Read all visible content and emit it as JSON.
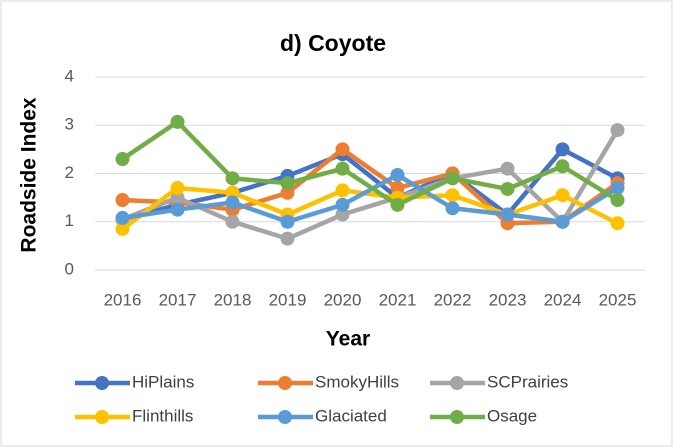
{
  "chart_data": {
    "type": "line",
    "title": "d) Coyote",
    "x_label": "Year",
    "y_label": "Roadside Index",
    "categories": [
      "2016",
      "2017",
      "2018",
      "2019",
      "2020",
      "2021",
      "2022",
      "2023",
      "2024",
      "2025"
    ],
    "series": [
      {
        "name": "HiPlains",
        "color": "#4472c4",
        "values": [
          1.05,
          1.35,
          1.6,
          1.95,
          2.4,
          1.5,
          2.0,
          1.15,
          2.5,
          1.9
        ]
      },
      {
        "name": "SmokyHills",
        "color": "#ed7d31",
        "values": [
          1.45,
          1.4,
          1.25,
          1.6,
          2.5,
          1.7,
          2.0,
          0.97,
          1.0,
          1.8
        ]
      },
      {
        "name": "SCPrairies",
        "color": "#a5a5a5",
        "values": [
          1.05,
          1.5,
          1.0,
          0.65,
          1.15,
          1.5,
          1.9,
          2.1,
          1.0,
          2.9
        ]
      },
      {
        "name": "Flinthills",
        "color": "#ffc000",
        "values": [
          0.85,
          1.7,
          1.6,
          1.15,
          1.65,
          1.5,
          1.55,
          1.15,
          1.55,
          0.97
        ]
      },
      {
        "name": "Glaciated",
        "color": "#5b9bd5",
        "values": [
          1.08,
          1.25,
          1.4,
          1.0,
          1.35,
          1.97,
          1.28,
          1.15,
          1.0,
          1.7
        ]
      },
      {
        "name": "Osage",
        "color": "#70ad47",
        "values": [
          2.3,
          3.07,
          1.9,
          1.8,
          2.1,
          1.35,
          1.9,
          1.68,
          2.15,
          1.45
        ]
      }
    ],
    "ylim": [
      0,
      4
    ],
    "yticks": [
      0,
      1,
      2,
      3,
      4
    ],
    "grid": true,
    "legend": "bottom"
  }
}
